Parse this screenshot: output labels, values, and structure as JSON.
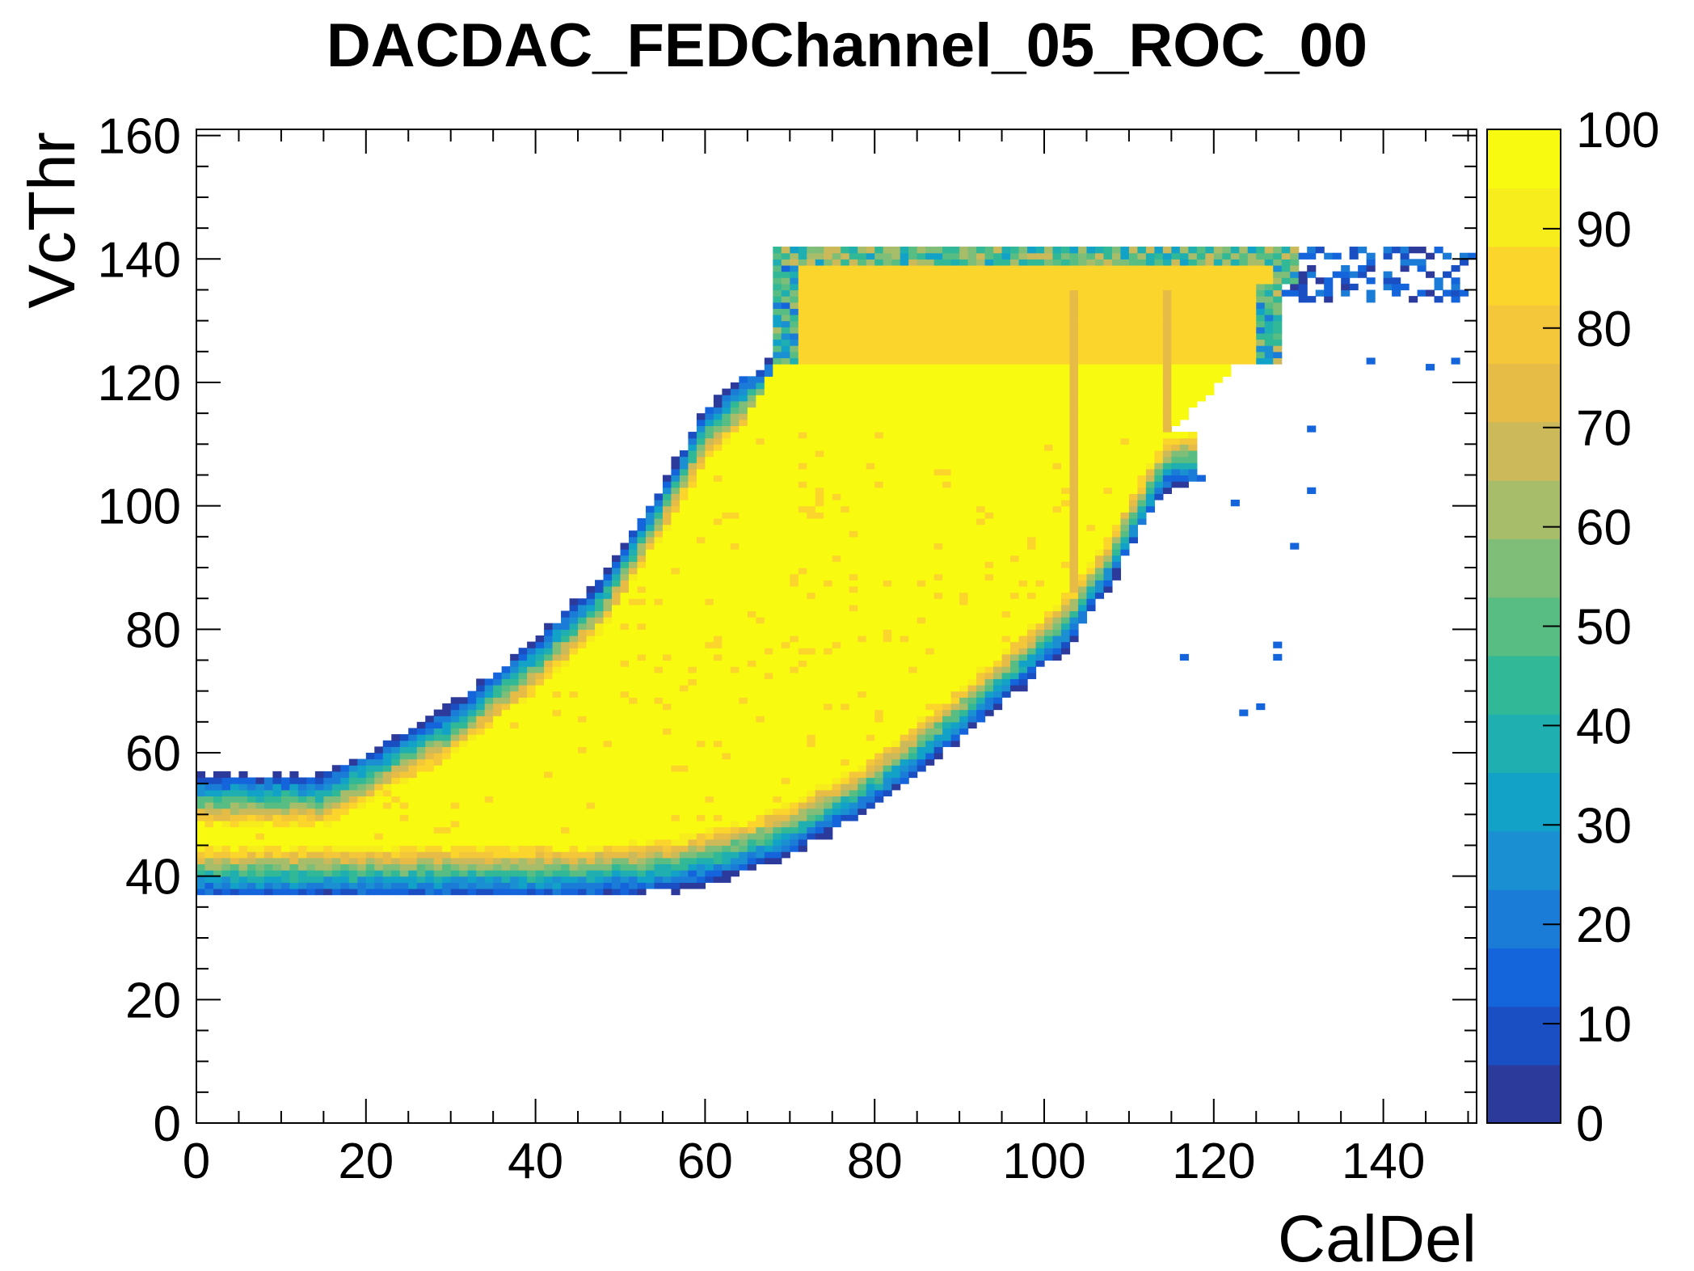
{
  "chart_data": {
    "type": "heatmap",
    "title": "DACDAC_FEDChannel_05_ROC_00",
    "xlabel": "CalDel",
    "ylabel": "VcThr",
    "xlim": [
      0,
      151
    ],
    "ylim": [
      0,
      161
    ],
    "x_ticks": [
      "0",
      "20",
      "40",
      "60",
      "80",
      "100",
      "120",
      "140"
    ],
    "y_ticks": [
      "0",
      "20",
      "40",
      "60",
      "80",
      "100",
      "120",
      "140",
      "160"
    ],
    "colorbar": {
      "range": [
        0,
        100
      ],
      "ticks": [
        "0",
        "10",
        "20",
        "30",
        "40",
        "50",
        "60",
        "70",
        "80",
        "90",
        "100"
      ]
    },
    "palette": [
      "#2b3a9b",
      "#1a4fc4",
      "#1464dc",
      "#1b7cd8",
      "#1a90d2",
      "#12a2c8",
      "#1fafb0",
      "#31b896",
      "#58bd82",
      "#7fbe78",
      "#a8bd6a",
      "#cbb95a",
      "#e6bb46",
      "#f4c63a",
      "#fbd52c",
      "#f7ec1c",
      "#f8fa10"
    ],
    "regions": {
      "core_lower_edge": [
        [
          1,
          45
        ],
        [
          15,
          45
        ],
        [
          30,
          45
        ],
        [
          45,
          45
        ],
        [
          55,
          46
        ],
        [
          62,
          48
        ],
        [
          70,
          52
        ],
        [
          78,
          58
        ],
        [
          85,
          65
        ],
        [
          92,
          73
        ],
        [
          98,
          80
        ],
        [
          103,
          86
        ],
        [
          108,
          96
        ],
        [
          112,
          106
        ],
        [
          115,
          112
        ]
      ],
      "core_upper_edge": [
        [
          15,
          48
        ],
        [
          30,
          59
        ],
        [
          40,
          70
        ],
        [
          48,
          80
        ],
        [
          55,
          95
        ],
        [
          60,
          107
        ],
        [
          64,
          112
        ],
        [
          70,
          117
        ],
        [
          80,
          122
        ],
        [
          100,
          123
        ],
        [
          120,
          123
        ],
        [
          122,
          118
        ],
        [
          124,
          113
        ],
        [
          115,
          112
        ]
      ],
      "plateau": {
        "x": [
          68,
          128
        ],
        "y": [
          123,
          138
        ],
        "value": 83
      },
      "outer_top": 142,
      "outer_bottom": 37,
      "stripes": [
        {
          "x": 103,
          "y": [
            86,
            134
          ],
          "value": 75
        },
        {
          "x": 114,
          "y": [
            112,
            134
          ],
          "value": 72
        }
      ],
      "stray_points": [
        [
          116,
          75
        ],
        [
          127,
          75
        ],
        [
          127,
          77
        ],
        [
          123,
          66
        ],
        [
          125,
          67
        ],
        [
          122,
          100
        ],
        [
          131,
          102
        ],
        [
          129,
          93
        ],
        [
          118,
          104
        ],
        [
          131,
          112
        ],
        [
          138,
          123
        ],
        [
          145,
          122
        ],
        [
          148,
          123
        ],
        [
          150,
          140
        ]
      ]
    }
  }
}
